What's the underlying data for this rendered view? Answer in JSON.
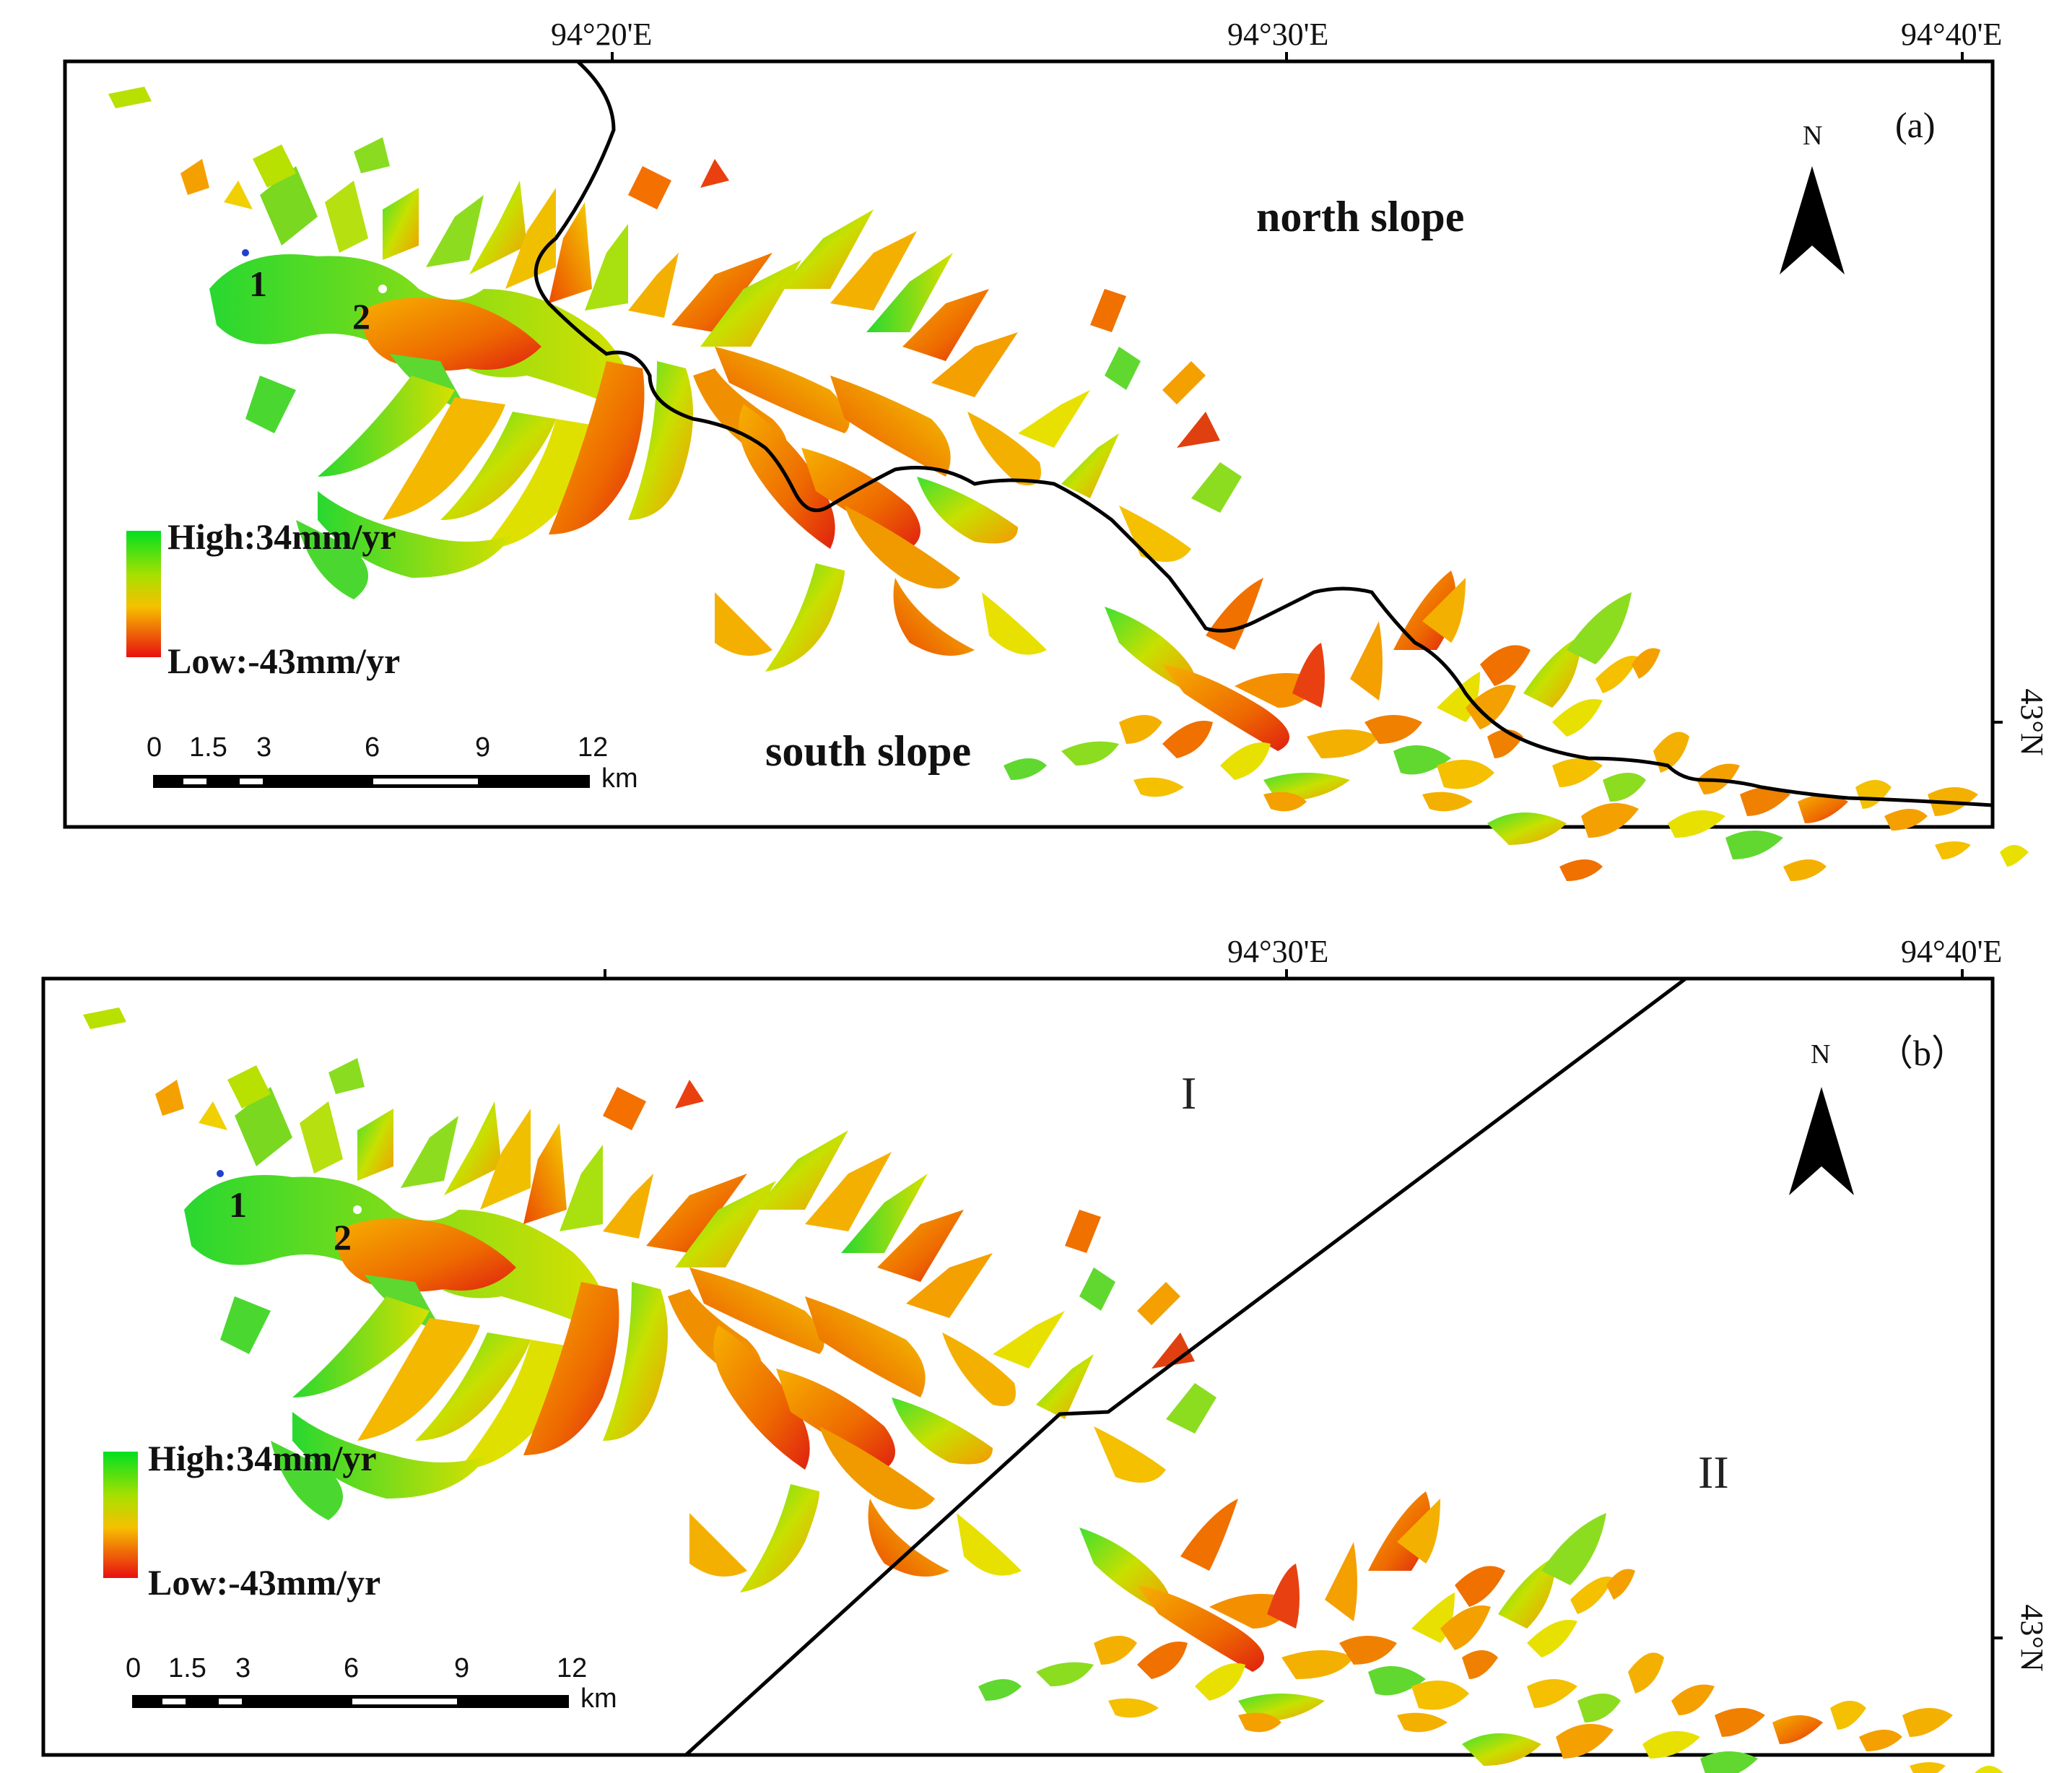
{
  "panels": [
    {
      "id": "a",
      "label": "(a)",
      "lon_labels": [
        "94°20'E",
        "94°30'E",
        "94°40'E"
      ],
      "lat_label": "43°N",
      "region_labels": [
        "north slope",
        "south slope"
      ],
      "point_labels": [
        "1",
        "2"
      ],
      "legend": {
        "high": "High:34mm/yr",
        "low": "Low:-43mm/yr"
      },
      "north_arrow": "N",
      "scale": {
        "ticks": [
          "0",
          "1.5",
          "3",
          "6",
          "9",
          "12"
        ],
        "unit": "km"
      }
    },
    {
      "id": "b",
      "label": "（b）",
      "lon_labels": [
        "94°30'E",
        "94°40'E"
      ],
      "lat_label": "43°N",
      "region_labels": [
        "I",
        "II"
      ],
      "point_labels": [
        "1",
        "2"
      ],
      "legend": {
        "high": "High:34mm/yr",
        "low": "Low:-43mm/yr"
      },
      "north_arrow": "N",
      "scale": {
        "ticks": [
          "0",
          "1.5",
          "3",
          "6",
          "9",
          "12"
        ],
        "unit": "km"
      }
    }
  ],
  "colors": {
    "high": "#00e020",
    "mid": "#f0e000",
    "low": "#e81010",
    "frame": "#000000"
  }
}
